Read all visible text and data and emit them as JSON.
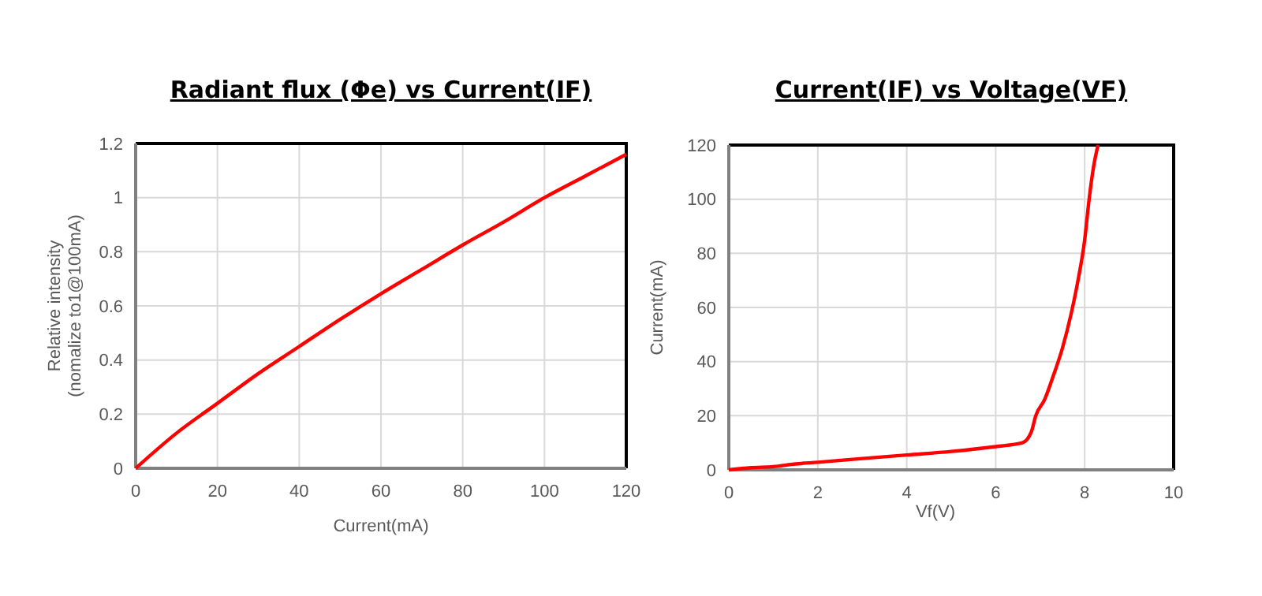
{
  "chart_data": [
    {
      "type": "line",
      "title": "Radiant flux (Φe) vs Current(IF)",
      "xlabel": "Current(mA)",
      "ylabel": "Relative intensity\n(nomalize to1@100mA)",
      "x": [
        0,
        10,
        20,
        30,
        40,
        50,
        60,
        70,
        80,
        90,
        100,
        110,
        120
      ],
      "series": [
        {
          "color": "#ff0000",
          "values": [
            0,
            0.13,
            0.24,
            0.35,
            0.45,
            0.55,
            0.645,
            0.735,
            0.825,
            0.91,
            1.0,
            1.08,
            1.16
          ]
        }
      ],
      "xlim": [
        0,
        120
      ],
      "xticks": [
        0,
        20,
        40,
        60,
        80,
        100,
        120
      ],
      "ylim": [
        0,
        1.2
      ],
      "yticks": [
        0,
        0.2,
        0.4,
        0.6,
        0.8,
        1,
        1.2
      ],
      "grid": true
    },
    {
      "type": "line",
      "title": "Current(IF) vs Voltage(VF)",
      "xlabel": "Vf(V)",
      "ylabel": "Current(mA)",
      "x": [
        0,
        0.5,
        1,
        1.5,
        2,
        3,
        4,
        5,
        6,
        6.6,
        6.8,
        6.9,
        7.1,
        7.3,
        7.5,
        7.7,
        7.85,
        8,
        8.1,
        8.2,
        8.3
      ],
      "series": [
        {
          "color": "#ff0000",
          "values": [
            0,
            0.8,
            1.2,
            2.2,
            2.8,
            4.2,
            5.5,
            6.8,
            8.6,
            10,
            14,
            20,
            26,
            35,
            45,
            58,
            70,
            85,
            100,
            112,
            120
          ]
        }
      ],
      "xlim": [
        0,
        10
      ],
      "xticks": [
        0,
        2,
        4,
        6,
        8,
        10
      ],
      "ylim": [
        0,
        120
      ],
      "yticks": [
        0,
        20,
        40,
        60,
        80,
        100,
        120
      ],
      "grid": true
    }
  ]
}
